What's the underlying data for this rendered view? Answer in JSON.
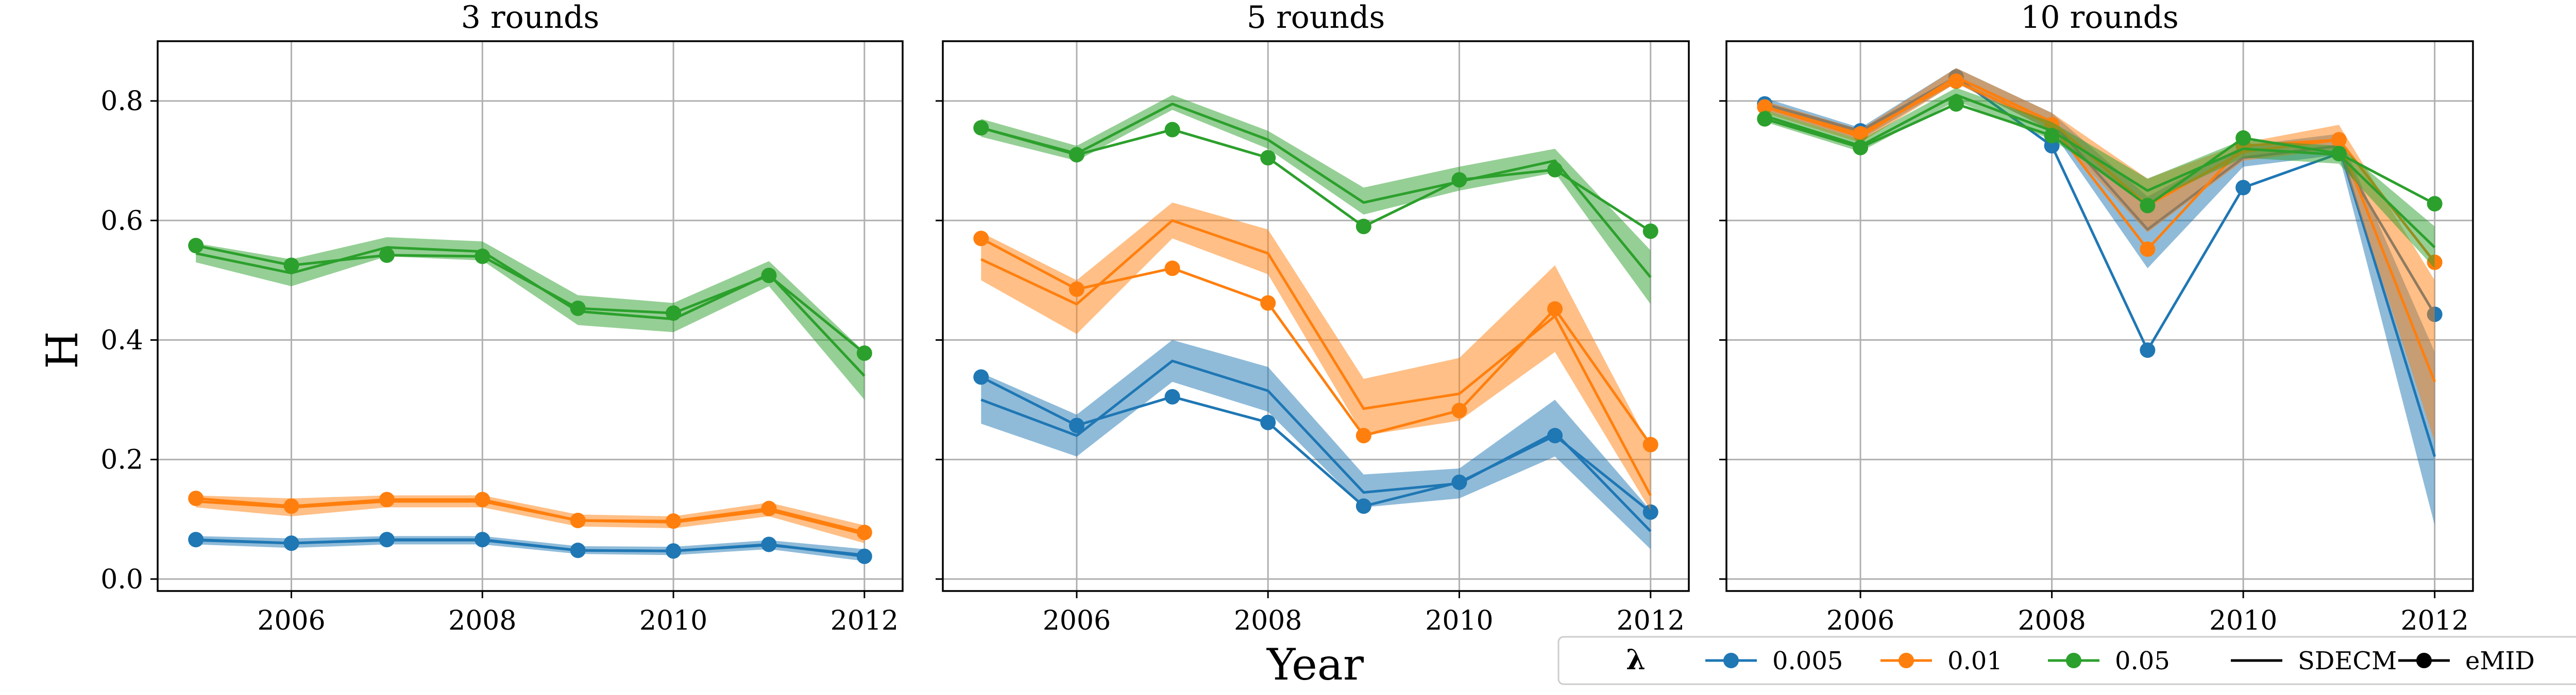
{
  "chart_data": {
    "type": "line",
    "ylabel": "H",
    "xlabel": "Year",
    "x": [
      2005,
      2006,
      2007,
      2008,
      2009,
      2010,
      2011,
      2012
    ],
    "xticks": [
      2006,
      2008,
      2010,
      2012
    ],
    "xlim": [
      2004.6,
      2012.4
    ],
    "ylim": [
      -0.02,
      0.9
    ],
    "yticks": [
      0.0,
      0.2,
      0.4,
      0.6,
      0.8
    ],
    "ytick_labels": [
      "0.0",
      "0.2",
      "0.4",
      "0.6",
      "0.8"
    ],
    "grid": true,
    "colors": {
      "0.005": "#1f77b4",
      "0.01": "#ff7f0e",
      "0.05": "#2ca02c"
    },
    "legend": {
      "placement": "bottom-right",
      "title": "λ",
      "entries": [
        {
          "label": "0.005",
          "kind": "line-marker",
          "color": "#1f77b4"
        },
        {
          "label": "0.01",
          "kind": "line-marker",
          "color": "#ff7f0e"
        },
        {
          "label": "0.05",
          "kind": "line-marker",
          "color": "#2ca02c"
        },
        {
          "label": "SDECM",
          "kind": "line",
          "color": "#000000"
        },
        {
          "label": "eMID",
          "kind": "line-marker",
          "color": "#000000"
        }
      ]
    },
    "panels": [
      {
        "title": "3 rounds",
        "series": [
          {
            "lambda": "0.005",
            "color": "#1f77b4",
            "sdecm": [
              0.065,
              0.06,
              0.065,
              0.065,
              0.048,
              0.047,
              0.057,
              0.04
            ],
            "lower": [
              0.058,
              0.052,
              0.058,
              0.058,
              0.042,
              0.04,
              0.05,
              0.03
            ],
            "upper": [
              0.072,
              0.068,
              0.072,
              0.072,
              0.055,
              0.054,
              0.065,
              0.05
            ],
            "emid": [
              0.066,
              0.06,
              0.066,
              0.066,
              0.048,
              0.047,
              0.058,
              0.038
            ]
          },
          {
            "lambda": "0.01",
            "color": "#ff7f0e",
            "sdecm": [
              0.13,
              0.12,
              0.13,
              0.13,
              0.098,
              0.095,
              0.115,
              0.075
            ],
            "lower": [
              0.12,
              0.105,
              0.12,
              0.12,
              0.088,
              0.085,
              0.105,
              0.06
            ],
            "upper": [
              0.14,
              0.135,
              0.14,
              0.14,
              0.108,
              0.105,
              0.128,
              0.09
            ],
            "emid": [
              0.135,
              0.122,
              0.133,
              0.133,
              0.098,
              0.097,
              0.118,
              0.078
            ]
          },
          {
            "lambda": "0.05",
            "color": "#2ca02c",
            "sdecm": [
              0.545,
              0.512,
              0.555,
              0.548,
              0.448,
              0.435,
              0.51,
              0.34
            ],
            "lower": [
              0.53,
              0.49,
              0.54,
              0.533,
              0.425,
              0.413,
              0.49,
              0.3
            ],
            "upper": [
              0.562,
              0.535,
              0.572,
              0.565,
              0.475,
              0.462,
              0.532,
              0.38
            ],
            "emid": [
              0.558,
              0.525,
              0.542,
              0.54,
              0.453,
              0.445,
              0.508,
              0.378
            ]
          }
        ]
      },
      {
        "title": "5 rounds",
        "series": [
          {
            "lambda": "0.005",
            "color": "#1f77b4",
            "sdecm": [
              0.3,
              0.24,
              0.365,
              0.315,
              0.145,
              0.16,
              0.245,
              0.08
            ],
            "lower": [
              0.26,
              0.205,
              0.33,
              0.28,
              0.12,
              0.135,
              0.205,
              0.05
            ],
            "upper": [
              0.345,
              0.275,
              0.4,
              0.355,
              0.175,
              0.185,
              0.3,
              0.115
            ],
            "emid": [
              0.338,
              0.257,
              0.305,
              0.262,
              0.122,
              0.162,
              0.24,
              0.112
            ]
          },
          {
            "lambda": "0.01",
            "color": "#ff7f0e",
            "sdecm": [
              0.535,
              0.46,
              0.6,
              0.545,
              0.285,
              0.31,
              0.44,
              0.14
            ],
            "lower": [
              0.5,
              0.41,
              0.57,
              0.51,
              0.24,
              0.265,
              0.38,
              0.115
            ],
            "upper": [
              0.58,
              0.5,
              0.63,
              0.585,
              0.335,
              0.37,
              0.525,
              0.22
            ],
            "emid": [
              0.57,
              0.485,
              0.52,
              0.462,
              0.24,
              0.282,
              0.452,
              0.225
            ]
          },
          {
            "lambda": "0.05",
            "color": "#2ca02c",
            "sdecm": [
              0.755,
              0.712,
              0.795,
              0.735,
              0.63,
              0.665,
              0.7,
              0.505
            ],
            "lower": [
              0.74,
              0.7,
              0.785,
              0.72,
              0.61,
              0.65,
              0.68,
              0.46
            ],
            "upper": [
              0.77,
              0.725,
              0.81,
              0.75,
              0.655,
              0.69,
              0.72,
              0.55
            ],
            "emid": [
              0.755,
              0.71,
              0.752,
              0.705,
              0.59,
              0.668,
              0.685,
              0.582
            ]
          }
        ]
      },
      {
        "title": "10 rounds",
        "series": [
          {
            "lambda": "0.005",
            "color": "#1f77b4",
            "sdecm": [
              0.795,
              0.745,
              0.84,
              0.765,
              0.585,
              0.705,
              0.725,
              0.205
            ],
            "lower": [
              0.785,
              0.735,
              0.83,
              0.75,
              0.52,
              0.69,
              0.71,
              0.09
            ],
            "upper": [
              0.805,
              0.755,
              0.855,
              0.78,
              0.64,
              0.725,
              0.745,
              0.38
            ],
            "emid": [
              0.795,
              0.75,
              0.84,
              0.725,
              0.383,
              0.655,
              0.712,
              0.443
            ]
          },
          {
            "lambda": "0.01",
            "color": "#ff7f0e",
            "sdecm": [
              0.79,
              0.74,
              0.84,
              0.765,
              0.625,
              0.715,
              0.735,
              0.33
            ],
            "lower": [
              0.78,
              0.73,
              0.83,
              0.75,
              0.58,
              0.7,
              0.72,
              0.23
            ],
            "upper": [
              0.8,
              0.752,
              0.855,
              0.78,
              0.67,
              0.73,
              0.76,
              0.5
            ],
            "emid": [
              0.79,
              0.745,
              0.833,
              0.76,
              0.552,
              0.725,
              0.735,
              0.53
            ]
          },
          {
            "lambda": "0.05",
            "color": "#2ca02c",
            "sdecm": [
              0.775,
              0.725,
              0.81,
              0.75,
              0.65,
              0.72,
              0.71,
              0.555
            ],
            "lower": [
              0.765,
              0.715,
              0.8,
              0.735,
              0.63,
              0.705,
              0.695,
              0.52
            ],
            "upper": [
              0.785,
              0.735,
              0.822,
              0.765,
              0.67,
              0.735,
              0.725,
              0.59
            ],
            "emid": [
              0.77,
              0.722,
              0.795,
              0.742,
              0.625,
              0.738,
              0.712,
              0.628
            ]
          }
        ]
      }
    ]
  }
}
